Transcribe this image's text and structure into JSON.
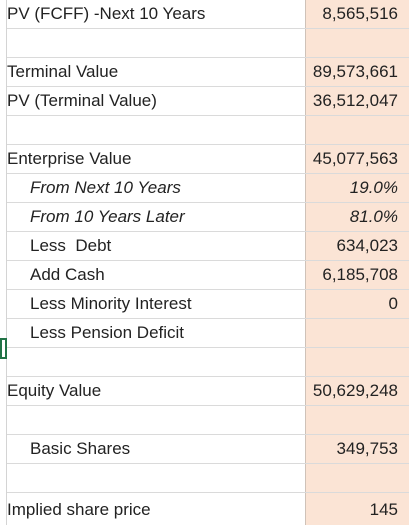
{
  "rows": [
    {
      "label": "PV (FCFF) -Next 10 Years",
      "value": "8,565,516"
    },
    {
      "label": "",
      "value": ""
    },
    {
      "label": "Terminal Value",
      "value": "89,573,661"
    },
    {
      "label": "PV (Terminal Value)",
      "value": "36,512,047"
    },
    {
      "label": "",
      "value": ""
    },
    {
      "label": "Enterprise Value",
      "value": "45,077,563"
    },
    {
      "label": "From Next 10 Years",
      "value": "19.0%"
    },
    {
      "label": "From 10 Years Later",
      "value": "81.0%"
    },
    {
      "label": "Less  Debt",
      "value": "634,023"
    },
    {
      "label": "Add Cash",
      "value": "6,185,708"
    },
    {
      "label": "Less Minority Interest",
      "value": "0"
    },
    {
      "label": "Less Pension Deficit",
      "value": ""
    },
    {
      "label": "",
      "value": ""
    },
    {
      "label": "Equity Value",
      "value": "50,629,248"
    },
    {
      "label": "",
      "value": ""
    },
    {
      "label": "Basic Shares",
      "value": "349,753"
    },
    {
      "label": "",
      "value": ""
    },
    {
      "label": "Implied share price",
      "value": "145"
    }
  ]
}
